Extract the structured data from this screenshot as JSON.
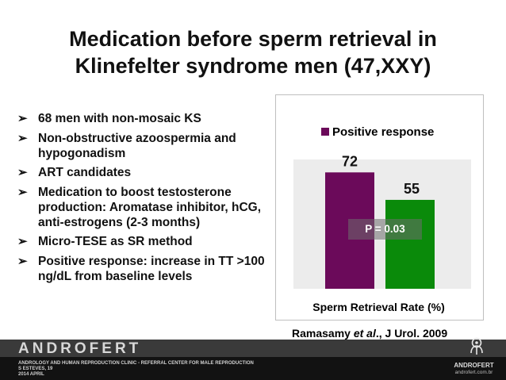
{
  "slide": {
    "title_line1": "Medication before sperm retrieval in",
    "title_line2": "Klinefelter syndrome men (47,XXY)",
    "bullet_glyph": "➢",
    "bullets": [
      "68 men with non-mosaic KS",
      "Non-obstructive azoospermia and hypogonadism",
      "ART candidates",
      "Medication to boost testosterone production: Aromatase inhibitor, hCG, anti-estrogens (2-3 months)",
      "Micro-TESE as SR method",
      "Positive response: increase in TT >100 ng/dL from baseline levels"
    ],
    "citation_author": "Ramasamy ",
    "citation_etal": "et al",
    "citation_rest": "., J Urol. 2009",
    "pvalue": "P = 0.03"
  },
  "chart_data": {
    "type": "bar",
    "categories": [
      "Sperm Retrieval Rate (%)"
    ],
    "series": [
      {
        "name": "Positive response",
        "values": [
          72
        ],
        "color": "#6b0a5a"
      },
      {
        "values": [
          55
        ],
        "color": "#0a8a0a"
      }
    ],
    "data_labels": [
      "72",
      "55"
    ],
    "xlabel": "Sperm Retrieval Rate (%)",
    "ylim": [
      0,
      80
    ],
    "legend": "top"
  },
  "footer": {
    "brand": "ANDROFERT",
    "line1": "ANDROLOGY AND HUMAN REPRODUCTION CLINIC - REFERRAL CENTER FOR MALE REPRODUCTION",
    "line2": "S ESTEVES, 19",
    "line3": "2014 APRIL",
    "logo_name": "ANDROFERT",
    "logo_url": "androfert.com.br"
  },
  "colors": {
    "bar1": "#6b0a5a",
    "bar2": "#0a8a0a",
    "footer_bg": "#121212"
  }
}
